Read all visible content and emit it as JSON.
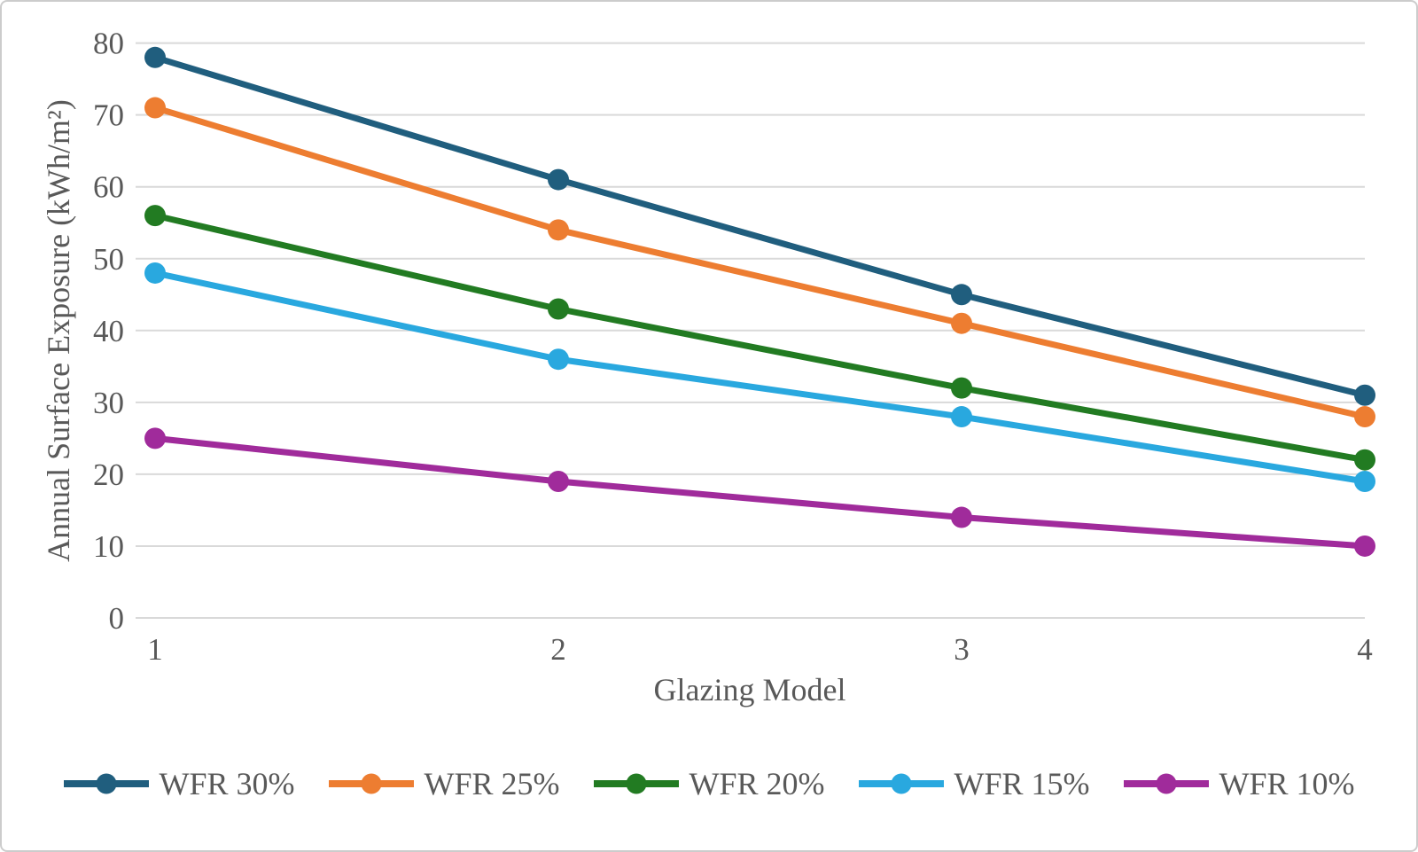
{
  "chart_data": {
    "type": "line",
    "categories": [
      "1",
      "2",
      "3",
      "4"
    ],
    "series": [
      {
        "name": "WFR 30%",
        "color": "#205E7E",
        "values": [
          78,
          61,
          45,
          31
        ]
      },
      {
        "name": "WFR 25%",
        "color": "#ED7D31",
        "values": [
          71,
          54,
          41,
          28
        ]
      },
      {
        "name": "WFR 20%",
        "color": "#227B22",
        "values": [
          56,
          43,
          32,
          22
        ]
      },
      {
        "name": "WFR 15%",
        "color": "#29A8DF",
        "values": [
          48,
          36,
          28,
          19
        ]
      },
      {
        "name": "WFR 10%",
        "color": "#A02B9B",
        "values": [
          25,
          19,
          14,
          10
        ]
      }
    ],
    "title": "",
    "xlabel": "Glazing Model",
    "ylabel": "Annual Surface Exposure (kWh/m²)",
    "ylim": [
      0,
      80
    ],
    "ytick_step": 10,
    "yticks": [
      "0",
      "10",
      "20",
      "30",
      "40",
      "50",
      "60",
      "70",
      "80"
    ],
    "grid": "horizontal",
    "legend_position": "bottom",
    "marker": "circle"
  },
  "styles": {
    "grid_color": "#D9D9D9",
    "axis_line_color": "#D9D9D9",
    "text_color": "#595959",
    "frame_border_color": "#CCCCCC",
    "background_color": "#FFFFFF"
  }
}
